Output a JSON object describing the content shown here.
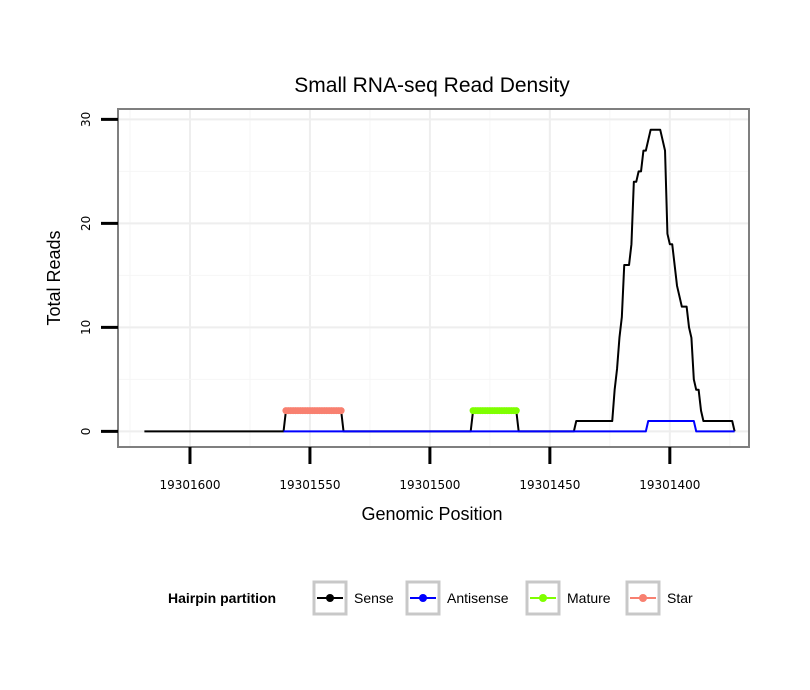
{
  "chart_data": {
    "type": "line",
    "title": "Small RNA-seq Read Density",
    "xlabel": "Genomic Position",
    "ylabel": "Total Reads",
    "x_reversed": true,
    "xlim": [
      19301630,
      19301367
    ],
    "ylim": [
      -1.5,
      31
    ],
    "x_ticks": [
      19301600,
      19301550,
      19301500,
      19301450,
      19301400
    ],
    "x_tick_labels": [
      "19301600",
      "19301550",
      "19301500",
      "19301450",
      "19301400"
    ],
    "y_ticks": [
      0,
      10,
      20,
      30
    ],
    "y_tick_labels": [
      "0",
      "10",
      "20",
      "30"
    ],
    "grid": true,
    "legend": {
      "title": "Hairpin partition",
      "position": "bottom",
      "entries": [
        "Sense",
        "Antisense",
        "Mature",
        "Star"
      ]
    },
    "series": [
      {
        "name": "Sense",
        "color": "#000000",
        "style": "line",
        "points": [
          [
            19301619,
            0
          ],
          [
            19301561,
            0
          ],
          [
            19301560,
            2
          ],
          [
            19301537,
            2
          ],
          [
            19301536,
            0
          ],
          [
            19301483,
            0
          ],
          [
            19301482,
            2
          ],
          [
            19301464,
            2
          ],
          [
            19301463,
            0
          ],
          [
            19301440,
            0
          ],
          [
            19301439,
            1
          ],
          [
            19301424,
            1
          ],
          [
            19301423,
            4
          ],
          [
            19301422,
            6
          ],
          [
            19301421,
            9
          ],
          [
            19301420,
            11
          ],
          [
            19301419,
            16
          ],
          [
            19301417,
            16
          ],
          [
            19301416,
            18
          ],
          [
            19301415,
            24
          ],
          [
            19301414,
            24
          ],
          [
            19301413,
            25
          ],
          [
            19301412,
            25
          ],
          [
            19301411,
            27
          ],
          [
            19301410,
            27
          ],
          [
            19301409,
            28
          ],
          [
            19301408,
            29
          ],
          [
            19301404,
            29
          ],
          [
            19301403,
            28
          ],
          [
            19301402,
            27
          ],
          [
            19301401,
            19
          ],
          [
            19301400,
            18
          ],
          [
            19301399,
            18
          ],
          [
            19301398,
            16
          ],
          [
            19301397,
            14
          ],
          [
            19301396,
            13
          ],
          [
            19301395,
            12
          ],
          [
            19301393,
            12
          ],
          [
            19301392,
            10
          ],
          [
            19301391,
            9
          ],
          [
            19301390,
            5
          ],
          [
            19301389,
            4
          ],
          [
            19301388,
            4
          ],
          [
            19301387,
            2
          ],
          [
            19301386,
            1
          ],
          [
            19301374,
            1
          ],
          [
            19301373,
            0
          ]
        ]
      },
      {
        "name": "Antisense",
        "color": "#0000ff",
        "style": "line",
        "points": [
          [
            19301561,
            0
          ],
          [
            19301410,
            0
          ],
          [
            19301409,
            1
          ],
          [
            19301390,
            1
          ],
          [
            19301389,
            0
          ],
          [
            19301373,
            0
          ]
        ]
      },
      {
        "name": "Mature",
        "color": "#7fff00",
        "style": "points",
        "points_range": [
          19301482,
          19301464
        ],
        "value": 2
      },
      {
        "name": "Star",
        "color": "#f88070",
        "style": "points",
        "points_range": [
          19301560,
          19301537
        ],
        "value": 2
      }
    ]
  }
}
